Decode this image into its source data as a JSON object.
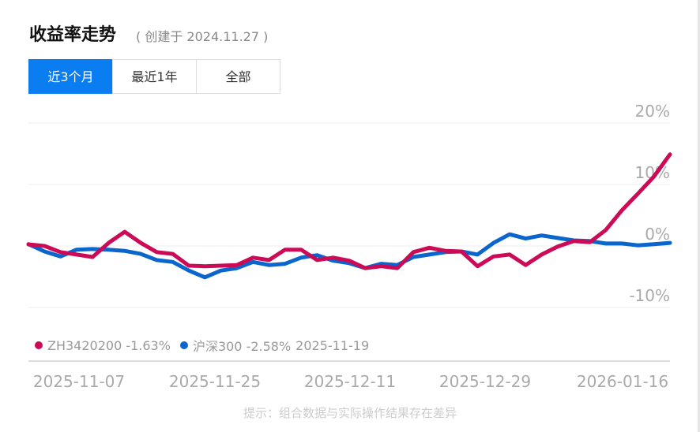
{
  "header": {
    "title": "收益率走势",
    "subtitle": "( 创建于 2024.11.27 )"
  },
  "tabs": [
    {
      "label": "近3个月",
      "active": true
    },
    {
      "label": "最近1年",
      "active": false
    },
    {
      "label": "全部",
      "active": false
    }
  ],
  "legend": {
    "items": [
      {
        "label": "ZH3420200 -1.63%",
        "color": "#cc0a55"
      },
      {
        "label": "沪深300 -2.58%",
        "color": "#0a66cc"
      }
    ],
    "date": "2025-11-19"
  },
  "note": "提示：组合数据与实际操作结果存在差异",
  "chart_data": {
    "type": "line",
    "ylim": [
      -10,
      20
    ],
    "y_ticks": [
      {
        "value": 20,
        "label": "20%"
      },
      {
        "value": 10,
        "label": "10%"
      },
      {
        "value": 0,
        "label": "0%"
      },
      {
        "value": -10,
        "label": "-10%"
      }
    ],
    "x_ticks": [
      "2025-11-07",
      "2025-11-25",
      "2025-12-11",
      "2025-12-29",
      "2026-01-16"
    ],
    "grid": true,
    "legend_placement": "bottom-left",
    "series": [
      {
        "name": "ZH3420200",
        "color": "#cc0a55",
        "values": [
          0.26,
          0,
          -1.0,
          -1.4,
          -1.8,
          0.5,
          2.3,
          0.5,
          -1.0,
          -1.3,
          -3.2,
          -3.3,
          -3.2,
          -3.1,
          -1.9,
          -2.3,
          -0.6,
          -0.6,
          -2.3,
          -1.9,
          -2.4,
          -3.6,
          -3.3,
          -3.6,
          -1.0,
          -0.3,
          -0.8,
          -0.9,
          -3.3,
          -1.7,
          -1.4,
          -3.1,
          -1.4,
          -0.1,
          0.8,
          0.6,
          2.6,
          5.8,
          8.5,
          11.3,
          14.9
        ]
      },
      {
        "name": "沪深300",
        "color": "#0a66cc",
        "values": [
          0.3,
          -0.9,
          -1.7,
          -0.6,
          -0.5,
          -0.6,
          -0.8,
          -1.3,
          -2.3,
          -2.6,
          -4.0,
          -5.1,
          -4.0,
          -3.6,
          -2.6,
          -3.1,
          -2.9,
          -1.9,
          -1.5,
          -2.4,
          -2.8,
          -3.6,
          -2.9,
          -3.1,
          -1.8,
          -1.4,
          -1.0,
          -0.9,
          -1.4,
          0.5,
          1.9,
          1.2,
          1.7,
          1.3,
          0.9,
          0.8,
          0.4,
          0.4,
          0.1,
          0.3,
          0.5
        ]
      }
    ]
  }
}
